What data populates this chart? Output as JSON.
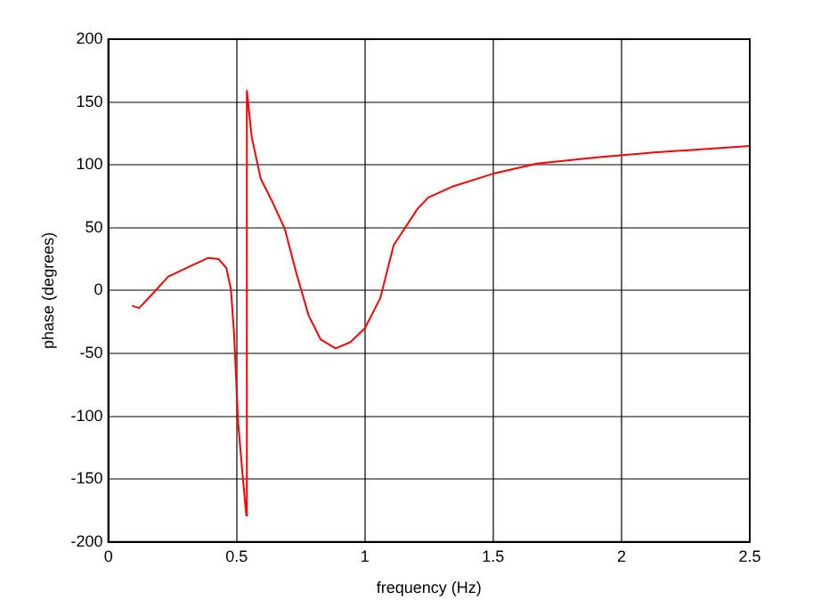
{
  "chart_data": {
    "type": "line",
    "xlabel": "frequency (Hz)",
    "ylabel": "phase (degrees)",
    "x": [
      0.093,
      0.12,
      0.175,
      0.233,
      0.315,
      0.39,
      0.43,
      0.46,
      0.478,
      0.49,
      0.506,
      0.524,
      0.538,
      0.54,
      0.559,
      0.594,
      0.641,
      0.688,
      0.734,
      0.781,
      0.828,
      0.886,
      0.944,
      1.0,
      1.06,
      1.112,
      1.205,
      1.247,
      1.345,
      1.5,
      1.672,
      1.905,
      2.138,
      2.5
    ],
    "series": [
      {
        "color": "#ff0000",
        "values": [
          -12,
          -14,
          -2,
          11,
          19,
          26,
          25,
          18,
          1,
          -34,
          -105,
          -148,
          -179,
          159,
          122,
          89,
          70,
          49,
          13,
          -20,
          -39,
          -46,
          -41,
          -30,
          -6,
          36,
          65,
          74,
          83,
          93,
          101,
          106,
          110,
          115
        ]
      }
    ],
    "xlim": [
      0,
      2.5
    ],
    "xticks": [
      0,
      0.5,
      1,
      1.5,
      2,
      2.5
    ],
    "ylim": [
      -200,
      200
    ],
    "yticks": [
      -200,
      -150,
      -100,
      -50,
      0,
      50,
      100,
      150,
      200
    ],
    "grid": true,
    "line_style": "solid",
    "marker": "none",
    "legend": false
  }
}
